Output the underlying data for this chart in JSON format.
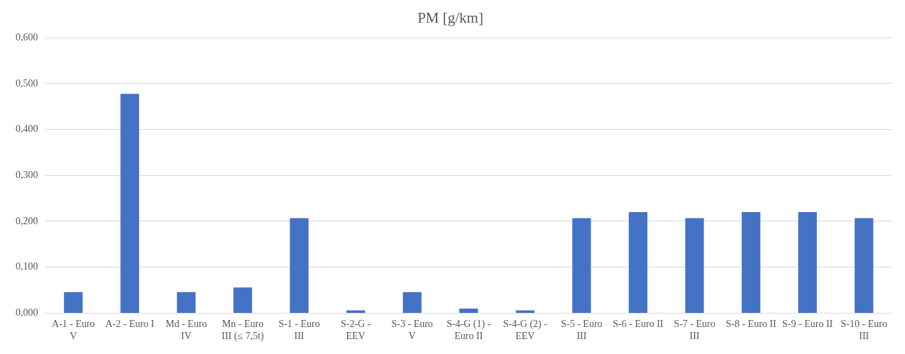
{
  "chart_data": {
    "type": "bar",
    "title": "PM [g/km]",
    "categories": [
      "A-1 - Euro V",
      "A-2 - Euro I",
      "Md - Euro IV",
      "Mn - Euro III (≤ 7,5t)",
      "S-1 - Euro III",
      "S-2-G - EEV",
      "S-3 - Euro V",
      "S-4-G (1) - Euro II",
      "S-4-G (2) - EEV",
      "S-5 - Euro III",
      "S-6 - Euro II",
      "S-7 - Euro III",
      "S-8 - Euro II",
      "S-9 - Euro II",
      "S-10 - Euro III"
    ],
    "values": [
      0.046,
      0.478,
      0.046,
      0.056,
      0.207,
      0.006,
      0.046,
      0.01,
      0.006,
      0.207,
      0.22,
      0.207,
      0.22,
      0.22,
      0.207
    ],
    "color": "#4472c4",
    "ylim": [
      0,
      0.6
    ],
    "yticks": [
      {
        "value": 0,
        "label": "0,000"
      },
      {
        "value": 0.1,
        "label": "0,100"
      },
      {
        "value": 0.2,
        "label": "0,200"
      },
      {
        "value": 0.3,
        "label": "0,300"
      },
      {
        "value": 0.4,
        "label": "0,400"
      },
      {
        "value": 0.5,
        "label": "0,500"
      },
      {
        "value": 0.6,
        "label": "0,600"
      }
    ],
    "grid": "y",
    "legend": false
  }
}
